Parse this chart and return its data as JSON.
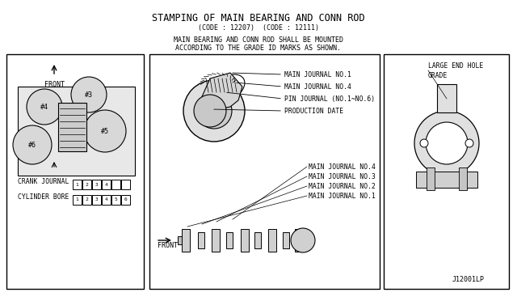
{
  "title_line1": "STAMPING OF MAIN BEARING AND CONN ROD",
  "title_line2": "(CODE : 12207)  (CODE : 12111)",
  "subtitle_line1": "MAIN BEARING AND CONN ROD SHALL BE MOUNTED",
  "subtitle_line2": "ACCORDING TO THE GRADE ID MARKS AS SHOWN.",
  "label_front": "FRONT",
  "label_crank": "CRANK JOURNAL",
  "label_cylinder": "CYLINDER BORE",
  "label_crank_nums": [
    "1",
    "2",
    "3",
    "4",
    "",
    ""
  ],
  "label_cyl_nums": [
    "1",
    "2",
    "3",
    "4",
    "5",
    "6"
  ],
  "labels_top_crankshaft": [
    "MAIN JOURNAL NO.1",
    "MAIN JOURNAL NO.4",
    "PIN JOURNAL (NO.1~NO.6)",
    "PRODUCTION DATE"
  ],
  "labels_bottom_crankshaft": [
    "MAIN JOURNAL NO.1",
    "MAIN JOURNAL NO.2",
    "MAIN JOURNAL NO.3",
    "MAIN JOURNAL NO.4"
  ],
  "label_large_end": "LARGE END HOLE\nGRADE",
  "label_front2": "FRONT",
  "label_ref": "J12001LP",
  "bg_color": "#ffffff",
  "line_color": "#000000",
  "diagram_bg": "#f5f5f5",
  "text_color": "#000000",
  "border_color": "#555555"
}
